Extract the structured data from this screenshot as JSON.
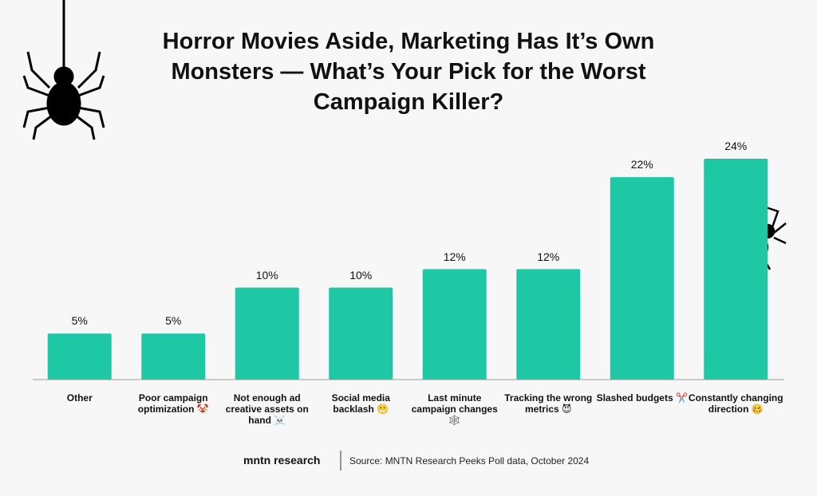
{
  "chart_data": {
    "type": "bar",
    "title": "Horror Movies Aside, Marketing Has It’s Own Monsters — What’s Your Pick for the Worst Campaign Killer?",
    "categories": [
      "Other",
      "Poor campaign optimization 🤡",
      "Not enough ad creative assets on hand ☠️",
      "Social media backlash 😬",
      "Last minute campaign changes 🕸️",
      "Tracking the wrong metrics 😈",
      "Slashed budgets ✂️",
      "Constantly changing direction 🥴"
    ],
    "values": [
      5,
      5,
      10,
      10,
      12,
      12,
      22,
      24
    ],
    "value_labels": [
      "5%",
      "5%",
      "10%",
      "10%",
      "12%",
      "12%",
      "22%",
      "24%"
    ],
    "color": "#1ec8a5",
    "ylim": [
      0,
      24
    ],
    "logo": "mntn research",
    "source": "Source: MNTN Research Peeks Poll data, October 2024"
  }
}
